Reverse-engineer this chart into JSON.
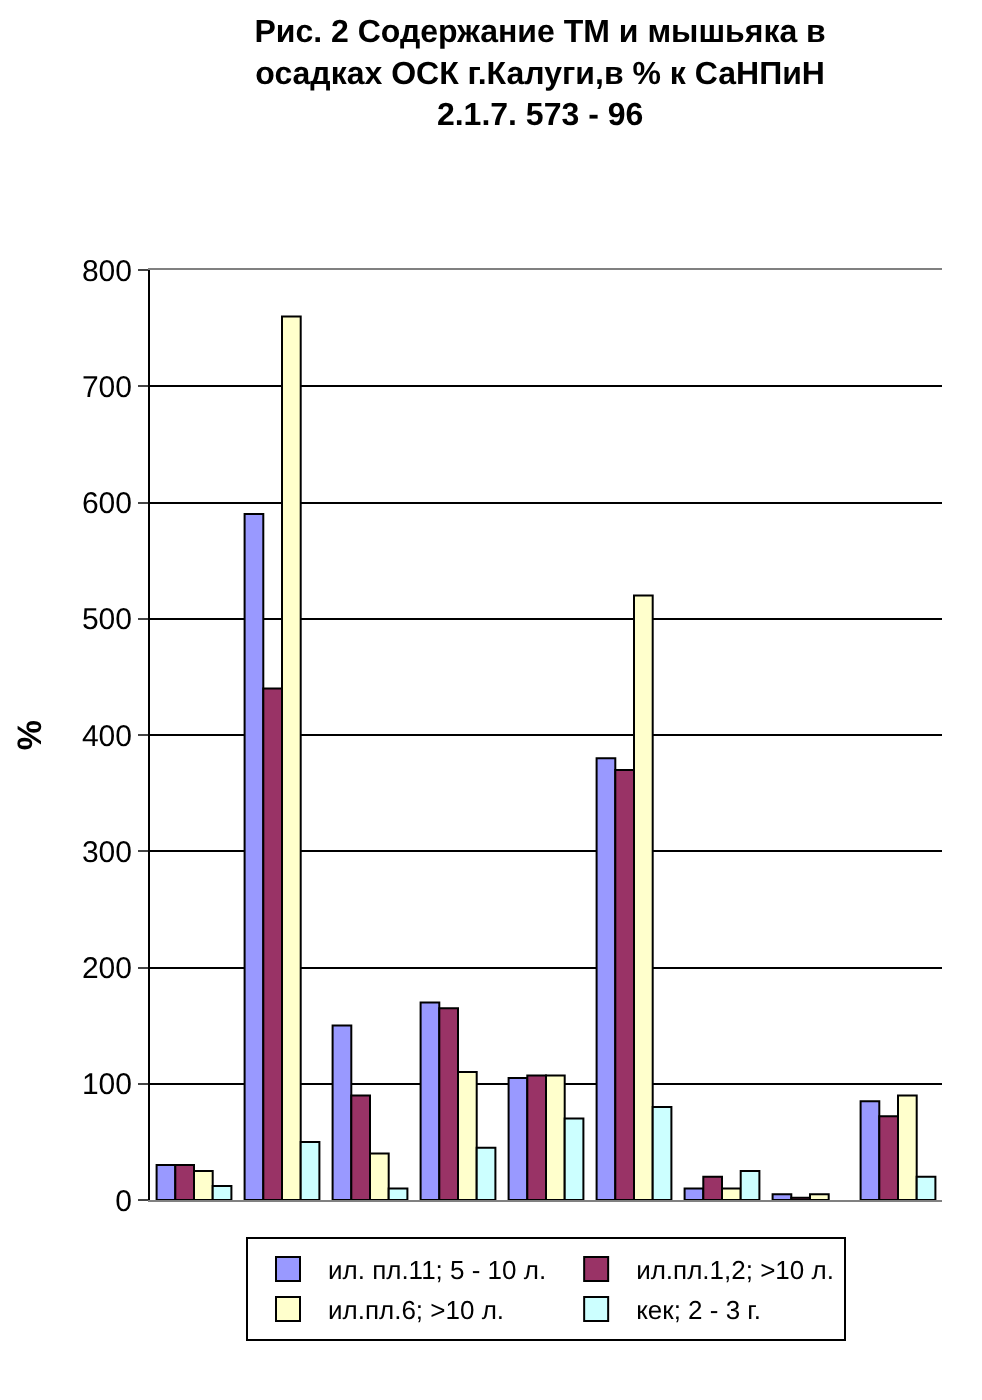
{
  "chart_data": {
    "type": "bar",
    "title": "Рис. 2 Содержание ТМ и мышьяка в осадках ОСК г.Калуги,в % к СаНПиН 2.1.7. 573 - 96",
    "ylabel": "%",
    "categories": [
      null,
      null,
      null,
      null,
      null,
      null,
      null,
      null,
      null
    ],
    "series": [
      {
        "name": "ил. пл.11; 5 - 10 л.",
        "color": "#9999ff",
        "values": [
          30,
          590,
          150,
          170,
          105,
          380,
          10,
          5,
          85
        ]
      },
      {
        "name": "ил.пл.1,2; >10 л.",
        "color": "#993366",
        "values": [
          30,
          440,
          90,
          165,
          107,
          370,
          20,
          2,
          72
        ]
      },
      {
        "name": "ил.пл.6; >10 л.",
        "color": "#ffffcc",
        "values": [
          25,
          760,
          40,
          110,
          107,
          520,
          10,
          5,
          90
        ]
      },
      {
        "name": "кек; 2 - 3 г.",
        "color": "#ccffff",
        "values": [
          12,
          50,
          10,
          45,
          70,
          80,
          25,
          null,
          20
        ]
      }
    ],
    "ylim": [
      0,
      800
    ],
    "yticks": [
      0,
      100,
      200,
      300,
      400,
      500,
      600,
      700,
      800
    ],
    "grid": "y",
    "legend": "bottom"
  }
}
